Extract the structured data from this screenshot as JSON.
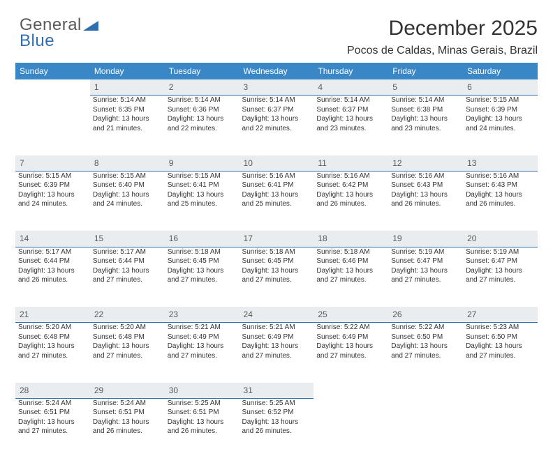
{
  "logo": {
    "text1": "General",
    "text2": "Blue"
  },
  "title": "December 2025",
  "subtitle": "Pocos de Caldas, Minas Gerais, Brazil",
  "colors": {
    "header_bg": "#3a87c8",
    "header_text": "#ffffff",
    "daynum_bg": "#e9edf0",
    "daynum_border": "#2f6fb0",
    "text": "#333333",
    "logo_gray": "#5a5a5a",
    "logo_blue": "#2f6fb0",
    "page_bg": "#ffffff"
  },
  "day_headers": [
    "Sunday",
    "Monday",
    "Tuesday",
    "Wednesday",
    "Thursday",
    "Friday",
    "Saturday"
  ],
  "weeks": [
    {
      "nums": [
        "",
        "1",
        "2",
        "3",
        "4",
        "5",
        "6"
      ],
      "cells": [
        [],
        [
          "Sunrise: 5:14 AM",
          "Sunset: 6:35 PM",
          "Daylight: 13 hours",
          "and 21 minutes."
        ],
        [
          "Sunrise: 5:14 AM",
          "Sunset: 6:36 PM",
          "Daylight: 13 hours",
          "and 22 minutes."
        ],
        [
          "Sunrise: 5:14 AM",
          "Sunset: 6:37 PM",
          "Daylight: 13 hours",
          "and 22 minutes."
        ],
        [
          "Sunrise: 5:14 AM",
          "Sunset: 6:37 PM",
          "Daylight: 13 hours",
          "and 23 minutes."
        ],
        [
          "Sunrise: 5:14 AM",
          "Sunset: 6:38 PM",
          "Daylight: 13 hours",
          "and 23 minutes."
        ],
        [
          "Sunrise: 5:15 AM",
          "Sunset: 6:39 PM",
          "Daylight: 13 hours",
          "and 24 minutes."
        ]
      ]
    },
    {
      "nums": [
        "7",
        "8",
        "9",
        "10",
        "11",
        "12",
        "13"
      ],
      "cells": [
        [
          "Sunrise: 5:15 AM",
          "Sunset: 6:39 PM",
          "Daylight: 13 hours",
          "and 24 minutes."
        ],
        [
          "Sunrise: 5:15 AM",
          "Sunset: 6:40 PM",
          "Daylight: 13 hours",
          "and 24 minutes."
        ],
        [
          "Sunrise: 5:15 AM",
          "Sunset: 6:41 PM",
          "Daylight: 13 hours",
          "and 25 minutes."
        ],
        [
          "Sunrise: 5:16 AM",
          "Sunset: 6:41 PM",
          "Daylight: 13 hours",
          "and 25 minutes."
        ],
        [
          "Sunrise: 5:16 AM",
          "Sunset: 6:42 PM",
          "Daylight: 13 hours",
          "and 26 minutes."
        ],
        [
          "Sunrise: 5:16 AM",
          "Sunset: 6:43 PM",
          "Daylight: 13 hours",
          "and 26 minutes."
        ],
        [
          "Sunrise: 5:16 AM",
          "Sunset: 6:43 PM",
          "Daylight: 13 hours",
          "and 26 minutes."
        ]
      ]
    },
    {
      "nums": [
        "14",
        "15",
        "16",
        "17",
        "18",
        "19",
        "20"
      ],
      "cells": [
        [
          "Sunrise: 5:17 AM",
          "Sunset: 6:44 PM",
          "Daylight: 13 hours",
          "and 26 minutes."
        ],
        [
          "Sunrise: 5:17 AM",
          "Sunset: 6:44 PM",
          "Daylight: 13 hours",
          "and 27 minutes."
        ],
        [
          "Sunrise: 5:18 AM",
          "Sunset: 6:45 PM",
          "Daylight: 13 hours",
          "and 27 minutes."
        ],
        [
          "Sunrise: 5:18 AM",
          "Sunset: 6:45 PM",
          "Daylight: 13 hours",
          "and 27 minutes."
        ],
        [
          "Sunrise: 5:18 AM",
          "Sunset: 6:46 PM",
          "Daylight: 13 hours",
          "and 27 minutes."
        ],
        [
          "Sunrise: 5:19 AM",
          "Sunset: 6:47 PM",
          "Daylight: 13 hours",
          "and 27 minutes."
        ],
        [
          "Sunrise: 5:19 AM",
          "Sunset: 6:47 PM",
          "Daylight: 13 hours",
          "and 27 minutes."
        ]
      ]
    },
    {
      "nums": [
        "21",
        "22",
        "23",
        "24",
        "25",
        "26",
        "27"
      ],
      "cells": [
        [
          "Sunrise: 5:20 AM",
          "Sunset: 6:48 PM",
          "Daylight: 13 hours",
          "and 27 minutes."
        ],
        [
          "Sunrise: 5:20 AM",
          "Sunset: 6:48 PM",
          "Daylight: 13 hours",
          "and 27 minutes."
        ],
        [
          "Sunrise: 5:21 AM",
          "Sunset: 6:49 PM",
          "Daylight: 13 hours",
          "and 27 minutes."
        ],
        [
          "Sunrise: 5:21 AM",
          "Sunset: 6:49 PM",
          "Daylight: 13 hours",
          "and 27 minutes."
        ],
        [
          "Sunrise: 5:22 AM",
          "Sunset: 6:49 PM",
          "Daylight: 13 hours",
          "and 27 minutes."
        ],
        [
          "Sunrise: 5:22 AM",
          "Sunset: 6:50 PM",
          "Daylight: 13 hours",
          "and 27 minutes."
        ],
        [
          "Sunrise: 5:23 AM",
          "Sunset: 6:50 PM",
          "Daylight: 13 hours",
          "and 27 minutes."
        ]
      ]
    },
    {
      "nums": [
        "28",
        "29",
        "30",
        "31",
        "",
        "",
        ""
      ],
      "cells": [
        [
          "Sunrise: 5:24 AM",
          "Sunset: 6:51 PM",
          "Daylight: 13 hours",
          "and 27 minutes."
        ],
        [
          "Sunrise: 5:24 AM",
          "Sunset: 6:51 PM",
          "Daylight: 13 hours",
          "and 26 minutes."
        ],
        [
          "Sunrise: 5:25 AM",
          "Sunset: 6:51 PM",
          "Daylight: 13 hours",
          "and 26 minutes."
        ],
        [
          "Sunrise: 5:25 AM",
          "Sunset: 6:52 PM",
          "Daylight: 13 hours",
          "and 26 minutes."
        ],
        [],
        [],
        []
      ]
    }
  ]
}
